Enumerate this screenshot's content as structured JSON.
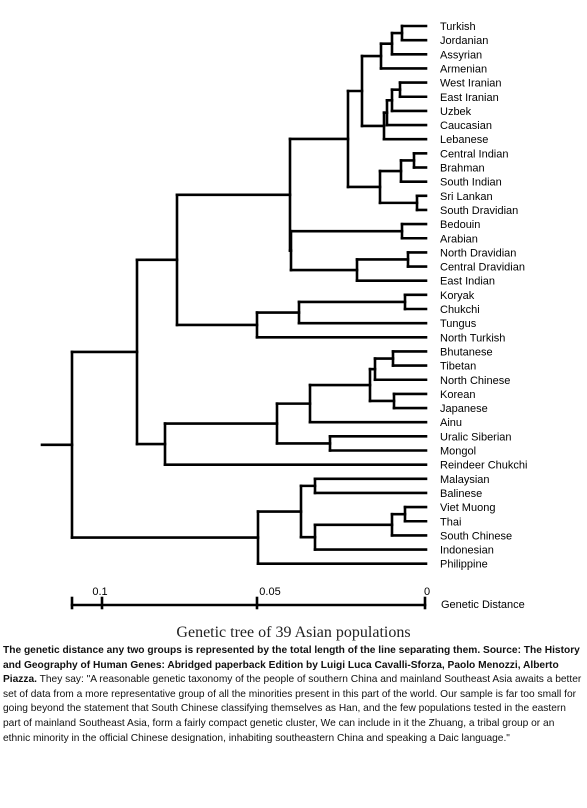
{
  "figure": {
    "title": "Genetic tree of 39 Asian populations",
    "axis_label": "Genetic Distance",
    "ticks": [
      "0.1",
      "0.05",
      "0"
    ]
  },
  "populations": [
    "Turkish",
    "Jordanian",
    "Assyrian",
    "Armenian",
    "West Iranian",
    "East Iranian",
    "Uzbek",
    "Caucasian",
    "Lebanese",
    "Central  Indian",
    "Brahman",
    "South  Indian",
    "Sri Lankan",
    "South  Dravidian",
    "Bedouin",
    "Arabian",
    "North  Dravidian",
    "Central  Dravidian",
    "East Indian",
    "Koryak",
    "Chukchi",
    "Tungus",
    "North  Turkish",
    "Bhutanese",
    "Tibetan",
    "North Chinese",
    "Korean",
    "Japanese",
    "Ainu",
    "Uralic Siberian",
    "Mongol",
    "Reindeer Chukchi",
    "Malaysian",
    "Balinese",
    "Viet Muong",
    "Thai",
    "South Chinese",
    "Indonesian",
    "Philippine"
  ],
  "caption": {
    "bold_lead": "The genetic distance any two groups is represented by the total length of the line separating them. Source: The History and Geography of Human Genes: Abridged paperback Edition by Luigi Luca Cavalli-Sforza, Paolo Menozzi, Alberto Piazza.",
    "body": "They say: \"A reasonable genetic taxonomy of the people of southern China and mainland Southeast Asia awaits a better set of data from a more representative group of all the minorities present in this part of the world. Our sample is far too small for going beyond the statement that South Chinese classifying themselves as Han, and the few populations tested in the eastern part of mainland Southeast Asia, form a fairly compact genetic cluster, We can include in it the Zhuang, a tribal group or an ethnic minority in the official Chinese designation, inhabiting southeastern China and speaking a Daic language.\""
  }
}
